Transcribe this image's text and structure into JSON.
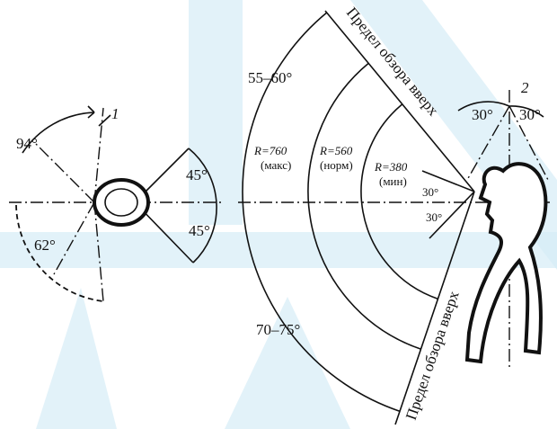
{
  "left_view": {
    "marker": "1",
    "angle_top": "94°",
    "angle_bottom": "62°",
    "angle_right_top": "45°",
    "angle_right_bottom": "45°"
  },
  "right_view": {
    "marker": "2",
    "angle_up": "55–60°",
    "angle_down": "70–75°",
    "radii": [
      {
        "r": "R=760",
        "note": "(макс)"
      },
      {
        "r": "R=560",
        "note": "(норм)"
      },
      {
        "r": "R=380",
        "note": "(мин)"
      }
    ],
    "eye_angle_top": "30°",
    "eye_angle_bottom": "30°",
    "head_angle_left": "30°",
    "head_angle_right": "30°",
    "limit_upper": "Предел обзора вверх",
    "limit_lower": "Предел обзора вверх"
  }
}
